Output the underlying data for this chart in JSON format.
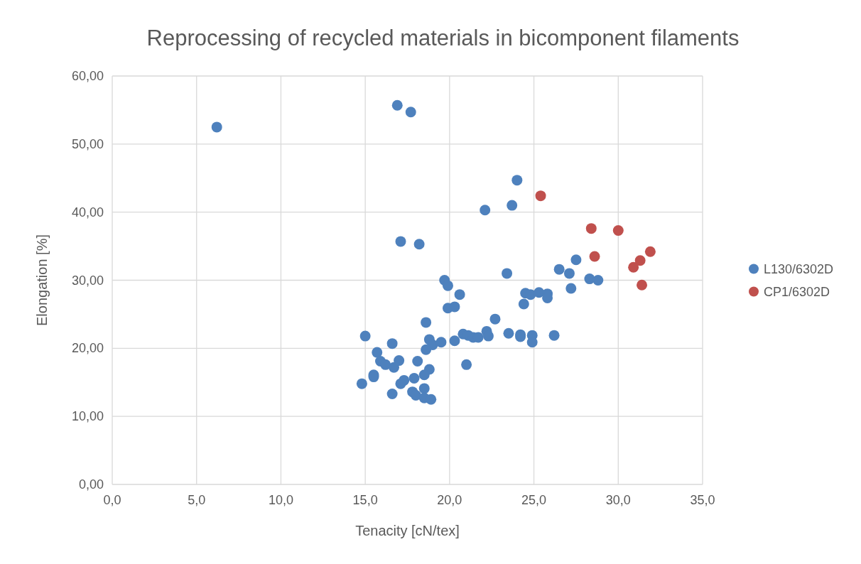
{
  "chart_data": {
    "type": "scatter",
    "title": "Reprocessing of recycled materials in bicomponent filaments",
    "xlabel": "Tenacity [cN/tex]",
    "ylabel": "Elongation [%]",
    "xlim": [
      0,
      35
    ],
    "ylim": [
      0,
      60
    ],
    "xticks": [
      {
        "value": 0,
        "label": "0,0"
      },
      {
        "value": 5,
        "label": "5,0"
      },
      {
        "value": 10,
        "label": "10,0"
      },
      {
        "value": 15,
        "label": "15,0"
      },
      {
        "value": 20,
        "label": "20,0"
      },
      {
        "value": 25,
        "label": "25,0"
      },
      {
        "value": 30,
        "label": "30,0"
      },
      {
        "value": 35,
        "label": "35,0"
      }
    ],
    "yticks": [
      {
        "value": 0,
        "label": "0,00"
      },
      {
        "value": 10,
        "label": "10,00"
      },
      {
        "value": 20,
        "label": "20,00"
      },
      {
        "value": 30,
        "label": "30,00"
      },
      {
        "value": 40,
        "label": "40,00"
      },
      {
        "value": 50,
        "label": "50,00"
      },
      {
        "value": 60,
        "label": "60,00"
      }
    ],
    "grid": true,
    "legend": "right",
    "marker": "circle",
    "series": [
      {
        "name": "L130/6302D",
        "color": "#4e81bd",
        "x": [
          6.2,
          16.9,
          17.7,
          24.0,
          23.7,
          22.1,
          17.1,
          18.2,
          27.5,
          26.5,
          27.1,
          23.4,
          28.3,
          28.8,
          27.2,
          24.5,
          24.8,
          25.3,
          25.8,
          25.8,
          24.4,
          22.7,
          23.5,
          24.2,
          24.2,
          24.9,
          24.9,
          26.2,
          19.7,
          19.9,
          20.6,
          19.9,
          20.3,
          18.6,
          15.0,
          16.6,
          18.8,
          19.0,
          19.5,
          20.3,
          20.8,
          21.1,
          21.4,
          21.7,
          22.2,
          22.3,
          18.6,
          21.0,
          15.7,
          15.9,
          16.2,
          16.7,
          17.0,
          18.1,
          18.8,
          18.5,
          15.5,
          15.5,
          14.8,
          17.3,
          17.1,
          17.9,
          18.5,
          16.6,
          17.8,
          18.0,
          18.5,
          18.9
        ],
        "values": [
          52.5,
          55.7,
          54.7,
          44.7,
          41.0,
          40.3,
          35.7,
          35.3,
          33.0,
          31.6,
          31.0,
          31.0,
          30.2,
          30.0,
          28.8,
          28.1,
          27.9,
          28.2,
          28.0,
          27.4,
          26.5,
          24.3,
          22.2,
          22.0,
          21.7,
          21.9,
          20.9,
          21.9,
          30.0,
          29.2,
          27.9,
          25.9,
          26.1,
          23.8,
          21.8,
          20.7,
          21.3,
          20.5,
          20.9,
          21.1,
          22.1,
          21.9,
          21.6,
          21.6,
          22.5,
          21.8,
          19.8,
          17.6,
          19.4,
          18.1,
          17.6,
          17.2,
          18.2,
          18.1,
          16.9,
          16.1,
          16.1,
          15.8,
          14.8,
          15.3,
          14.8,
          15.6,
          14.1,
          13.3,
          13.6,
          13.1,
          12.7,
          12.5
        ]
      },
      {
        "name": "CP1/6302D",
        "color": "#c0504d",
        "x": [
          25.4,
          28.4,
          30.0,
          31.9,
          31.3,
          30.9,
          28.6,
          31.4
        ],
        "values": [
          42.4,
          37.6,
          37.3,
          34.2,
          32.9,
          31.9,
          33.5,
          29.3
        ]
      }
    ]
  }
}
